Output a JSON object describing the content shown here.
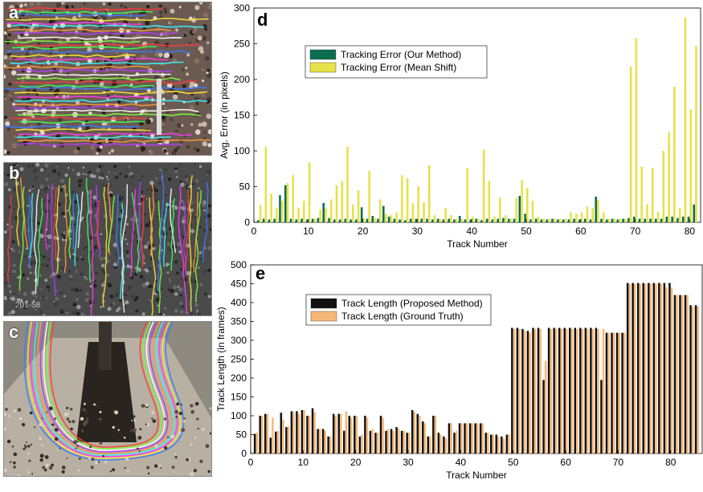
{
  "panels": {
    "a": "a",
    "b": "b",
    "c": "c",
    "d": "d",
    "e": "e"
  },
  "photo_b_stamp": "201-58",
  "chart_data": [
    {
      "id": "d",
      "type": "bar",
      "xlabel": "Track Number",
      "ylabel": "Avg. Error (in pixels)",
      "xlim": [
        0,
        82
      ],
      "ylim": [
        0,
        300
      ],
      "xticks": [
        0,
        10,
        20,
        30,
        40,
        50,
        60,
        70,
        80
      ],
      "yticks": [
        0,
        50,
        100,
        150,
        200,
        250,
        300
      ],
      "legend_position": "top-left",
      "grid": false,
      "x": [
        1,
        2,
        3,
        4,
        5,
        6,
        7,
        8,
        9,
        10,
        11,
        12,
        13,
        14,
        15,
        16,
        17,
        18,
        19,
        20,
        21,
        22,
        23,
        24,
        25,
        26,
        27,
        28,
        29,
        30,
        31,
        32,
        33,
        34,
        35,
        36,
        37,
        38,
        39,
        40,
        41,
        42,
        43,
        44,
        45,
        46,
        47,
        48,
        49,
        50,
        51,
        52,
        53,
        54,
        55,
        56,
        57,
        58,
        59,
        60,
        61,
        62,
        63,
        64,
        65,
        66,
        67,
        68,
        69,
        70,
        71,
        72,
        73,
        74,
        75,
        76,
        77,
        78,
        79,
        80,
        81
      ],
      "series": [
        {
          "name": "Tracking Error (Our Method)",
          "color": "#0b6e4f",
          "values": [
            3,
            5,
            4,
            5,
            38,
            52,
            5,
            4,
            5,
            4,
            5,
            6,
            27,
            6,
            4,
            4,
            5,
            4,
            4,
            21,
            5,
            9,
            5,
            23,
            8,
            5,
            4,
            3,
            5,
            5,
            5,
            5,
            4,
            5,
            4,
            5,
            4,
            9,
            4,
            4,
            5,
            3,
            5,
            4,
            5,
            6,
            5,
            5,
            37,
            12,
            4,
            5,
            4,
            4,
            5,
            4,
            4,
            4,
            5,
            4,
            5,
            4,
            36,
            5,
            4,
            5,
            4,
            5,
            6,
            8,
            5,
            5,
            5,
            5,
            5,
            8,
            8,
            6,
            8,
            8,
            25
          ]
        },
        {
          "name": "Tracking Error (Mean Shift)",
          "color": "#e6e24a",
          "values": [
            24,
            106,
            40,
            20,
            30,
            55,
            66,
            20,
            30,
            84,
            5,
            18,
            20,
            32,
            52,
            58,
            106,
            25,
            45,
            6,
            72,
            6,
            32,
            12,
            10,
            14,
            66,
            62,
            27,
            50,
            28,
            80,
            10,
            5,
            20,
            10,
            5,
            5,
            76,
            8,
            5,
            102,
            58,
            8,
            35,
            10,
            5,
            34,
            59,
            48,
            30,
            8,
            5,
            5,
            5,
            5,
            5,
            14,
            12,
            14,
            22,
            20,
            32,
            14,
            5,
            5,
            5,
            5,
            218,
            258,
            78,
            25,
            76,
            15,
            100,
            126,
            190,
            20,
            287,
            158,
            247
          ]
        }
      ]
    },
    {
      "id": "e",
      "type": "bar",
      "xlabel": "Track Number",
      "ylabel": "Track Length (in frames)",
      "xlim": [
        0,
        86
      ],
      "ylim": [
        0,
        500
      ],
      "xticks": [
        0,
        10,
        20,
        30,
        40,
        50,
        60,
        70,
        80
      ],
      "yticks": [
        0,
        50,
        100,
        150,
        200,
        250,
        300,
        350,
        400,
        450,
        500
      ],
      "legend_position": "top-left",
      "grid": false,
      "x": [
        1,
        2,
        3,
        4,
        5,
        6,
        7,
        8,
        9,
        10,
        11,
        12,
        13,
        14,
        15,
        16,
        17,
        18,
        19,
        20,
        21,
        22,
        23,
        24,
        25,
        26,
        27,
        28,
        29,
        30,
        31,
        32,
        33,
        34,
        35,
        36,
        37,
        38,
        39,
        40,
        41,
        42,
        43,
        44,
        45,
        46,
        47,
        48,
        49,
        50,
        51,
        52,
        53,
        54,
        55,
        56,
        57,
        58,
        59,
        60,
        61,
        62,
        63,
        64,
        65,
        66,
        67,
        68,
        69,
        70,
        71,
        72,
        73,
        74,
        75,
        76,
        77,
        78,
        79,
        80,
        81,
        82,
        83,
        84,
        85
      ],
      "series": [
        {
          "name": "Track Length (Proposed Method)",
          "color": "#111111",
          "values": [
            52,
            100,
            105,
            42,
            58,
            108,
            70,
            112,
            112,
            115,
            100,
            120,
            65,
            65,
            45,
            105,
            105,
            60,
            100,
            100,
            45,
            100,
            60,
            55,
            100,
            60,
            65,
            70,
            60,
            55,
            115,
            105,
            85,
            45,
            100,
            55,
            45,
            80,
            55,
            80,
            80,
            80,
            80,
            80,
            55,
            50,
            50,
            45,
            50,
            333,
            333,
            330,
            325,
            333,
            333,
            195,
            333,
            333,
            333,
            333,
            333,
            333,
            333,
            333,
            333,
            333,
            195,
            320,
            320,
            320,
            320,
            452,
            452,
            452,
            452,
            452,
            452,
            452,
            452,
            452,
            420,
            420,
            420,
            393,
            393
          ]
        },
        {
          "name": "Track Length (Ground Truth)",
          "color": "#f7b877",
          "values": [
            55,
            100,
            105,
            95,
            60,
            90,
            72,
            110,
            105,
            115,
            100,
            110,
            65,
            60,
            45,
            100,
            105,
            112,
            95,
            100,
            50,
            95,
            65,
            55,
            95,
            65,
            60,
            65,
            60,
            55,
            110,
            100,
            80,
            45,
            100,
            50,
            40,
            80,
            60,
            80,
            80,
            80,
            80,
            80,
            55,
            50,
            45,
            40,
            50,
            330,
            330,
            325,
            320,
            330,
            330,
            245,
            330,
            330,
            330,
            330,
            330,
            330,
            330,
            330,
            330,
            330,
            330,
            320,
            320,
            320,
            320,
            450,
            450,
            450,
            450,
            450,
            450,
            450,
            440,
            440,
            420,
            420,
            420,
            390,
            390
          ]
        }
      ]
    }
  ]
}
